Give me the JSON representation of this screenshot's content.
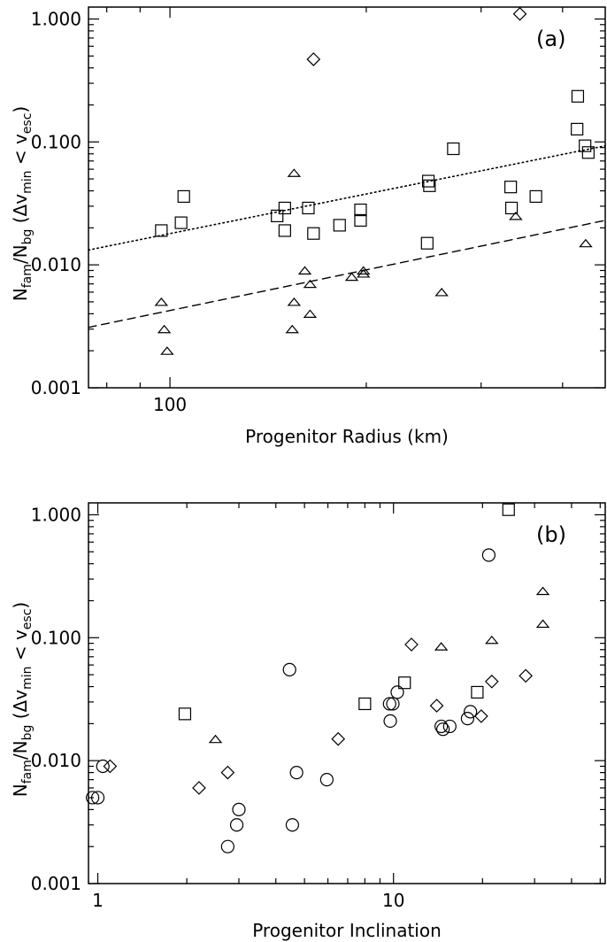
{
  "chart_data": [
    {
      "type": "scatter",
      "panel_label": "(a)",
      "xlabel": "Progenitor Radius (km)",
      "ylabel": {
        "base": "N",
        "sub1": "fam",
        "sep": "/N",
        "sub2": "bg",
        "open": " (Δv",
        "sub3": "min",
        "mid": " < v",
        "sub4": "esc",
        "close": ")"
      },
      "xscale": "log",
      "yscale": "log",
      "xlim": [
        75,
        465
      ],
      "ylim": [
        0.001,
        1.25
      ],
      "xtick_labels": [
        {
          "value": 100,
          "label": "100"
        }
      ],
      "ytick_labels": [
        {
          "value": 0.001,
          "label": "0.001"
        },
        {
          "value": 0.01,
          "label": "0.010"
        },
        {
          "value": 0.1,
          "label": "0.100"
        },
        {
          "value": 1,
          "label": "1.000"
        }
      ],
      "series": [
        {
          "marker": "square",
          "points": [
            [
              97,
              0.019
            ],
            [
              104,
              0.022
            ],
            [
              105,
              0.036
            ],
            [
              146,
              0.025
            ],
            [
              150,
              0.029
            ],
            [
              150,
              0.019
            ],
            [
              163,
              0.029
            ],
            [
              166,
              0.018
            ],
            [
              182,
              0.021
            ],
            [
              196,
              0.028
            ],
            [
              196,
              0.023
            ],
            [
              248,
              0.015
            ],
            [
              249,
              0.048
            ],
            [
              250,
              0.044
            ],
            [
              272,
              0.088
            ],
            [
              333,
              0.043
            ],
            [
              334,
              0.029
            ],
            [
              364,
              0.036
            ],
            [
              422,
              0.235
            ],
            [
              421,
              0.127
            ],
            [
              433,
              0.093
            ],
            [
              438,
              0.082
            ]
          ]
        },
        {
          "marker": "triangle",
          "points": [
            [
              97,
              0.005
            ],
            [
              98,
              0.003
            ],
            [
              99,
              0.002
            ],
            [
              155,
              0.056
            ],
            [
              155,
              0.005
            ],
            [
              154,
              0.003
            ],
            [
              161,
              0.009
            ],
            [
              164,
              0.007
            ],
            [
              164,
              0.004
            ],
            [
              190,
              0.008
            ],
            [
              198,
              0.0085
            ],
            [
              198,
              0.009
            ],
            [
              261,
              0.006
            ],
            [
              339,
              0.025
            ],
            [
              434,
              0.015
            ]
          ]
        },
        {
          "marker": "diamond",
          "points": [
            [
              166,
              0.47
            ],
            [
              344,
              1.1
            ]
          ]
        }
      ],
      "fit_lines": [
        {
          "style": "dotted",
          "points": [
            [
              75,
              0.0132
            ],
            [
              465,
              0.093
            ]
          ]
        },
        {
          "style": "dashed",
          "points": [
            [
              75,
              0.0031
            ],
            [
              465,
              0.023
            ]
          ]
        }
      ]
    },
    {
      "type": "scatter",
      "panel_label": "(b)",
      "xlabel": "Progenitor Inclination",
      "ylabel": {
        "base": "N",
        "sub1": "fam",
        "sep": "/N",
        "sub2": "bg",
        "open": " (Δv",
        "sub3": "min",
        "mid": " < v",
        "sub4": "esc",
        "close": ")"
      },
      "xscale": "log",
      "yscale": "log",
      "xlim": [
        0.93,
        52
      ],
      "ylim": [
        0.001,
        1.25
      ],
      "xtick_labels": [
        {
          "value": 1,
          "label": "1"
        },
        {
          "value": 10,
          "label": "10"
        }
      ],
      "ytick_labels": [
        {
          "value": 0.001,
          "label": "0.001"
        },
        {
          "value": 0.01,
          "label": "0.010"
        },
        {
          "value": 0.1,
          "label": "0.100"
        },
        {
          "value": 1,
          "label": "1.000"
        }
      ],
      "series": [
        {
          "marker": "circle",
          "points": [
            [
              0.96,
              0.005
            ],
            [
              1.0,
              0.005
            ],
            [
              1.04,
              0.009
            ],
            [
              2.75,
              0.002
            ],
            [
              2.95,
              0.003
            ],
            [
              3.0,
              0.004
            ],
            [
              4.45,
              0.055
            ],
            [
              4.55,
              0.003
            ],
            [
              4.7,
              0.008
            ],
            [
              5.95,
              0.007
            ],
            [
              9.7,
              0.029
            ],
            [
              9.95,
              0.029
            ],
            [
              9.75,
              0.021
            ],
            [
              10.3,
              0.036
            ],
            [
              14.5,
              0.019
            ],
            [
              14.7,
              0.018
            ],
            [
              15.5,
              0.019
            ],
            [
              17.8,
              0.022
            ],
            [
              18.2,
              0.025
            ],
            [
              21.0,
              0.47
            ]
          ]
        },
        {
          "marker": "square",
          "points": [
            [
              1.97,
              0.024
            ],
            [
              8.0,
              0.029
            ],
            [
              10.9,
              0.043
            ],
            [
              19.2,
              0.036
            ],
            [
              24.5,
              1.1
            ]
          ]
        },
        {
          "marker": "diamond",
          "points": [
            [
              1.1,
              0.009
            ],
            [
              2.2,
              0.006
            ],
            [
              2.75,
              0.008
            ],
            [
              6.5,
              0.015
            ],
            [
              11.5,
              0.088
            ],
            [
              14.0,
              0.028
            ],
            [
              19.8,
              0.023
            ],
            [
              21.5,
              0.044
            ],
            [
              28.0,
              0.049
            ]
          ]
        },
        {
          "marker": "triangle",
          "points": [
            [
              2.5,
              0.015
            ],
            [
              14.5,
              0.085
            ],
            [
              21.5,
              0.096
            ],
            [
              32.0,
              0.24
            ],
            [
              32.0,
              0.13
            ]
          ]
        }
      ]
    }
  ]
}
